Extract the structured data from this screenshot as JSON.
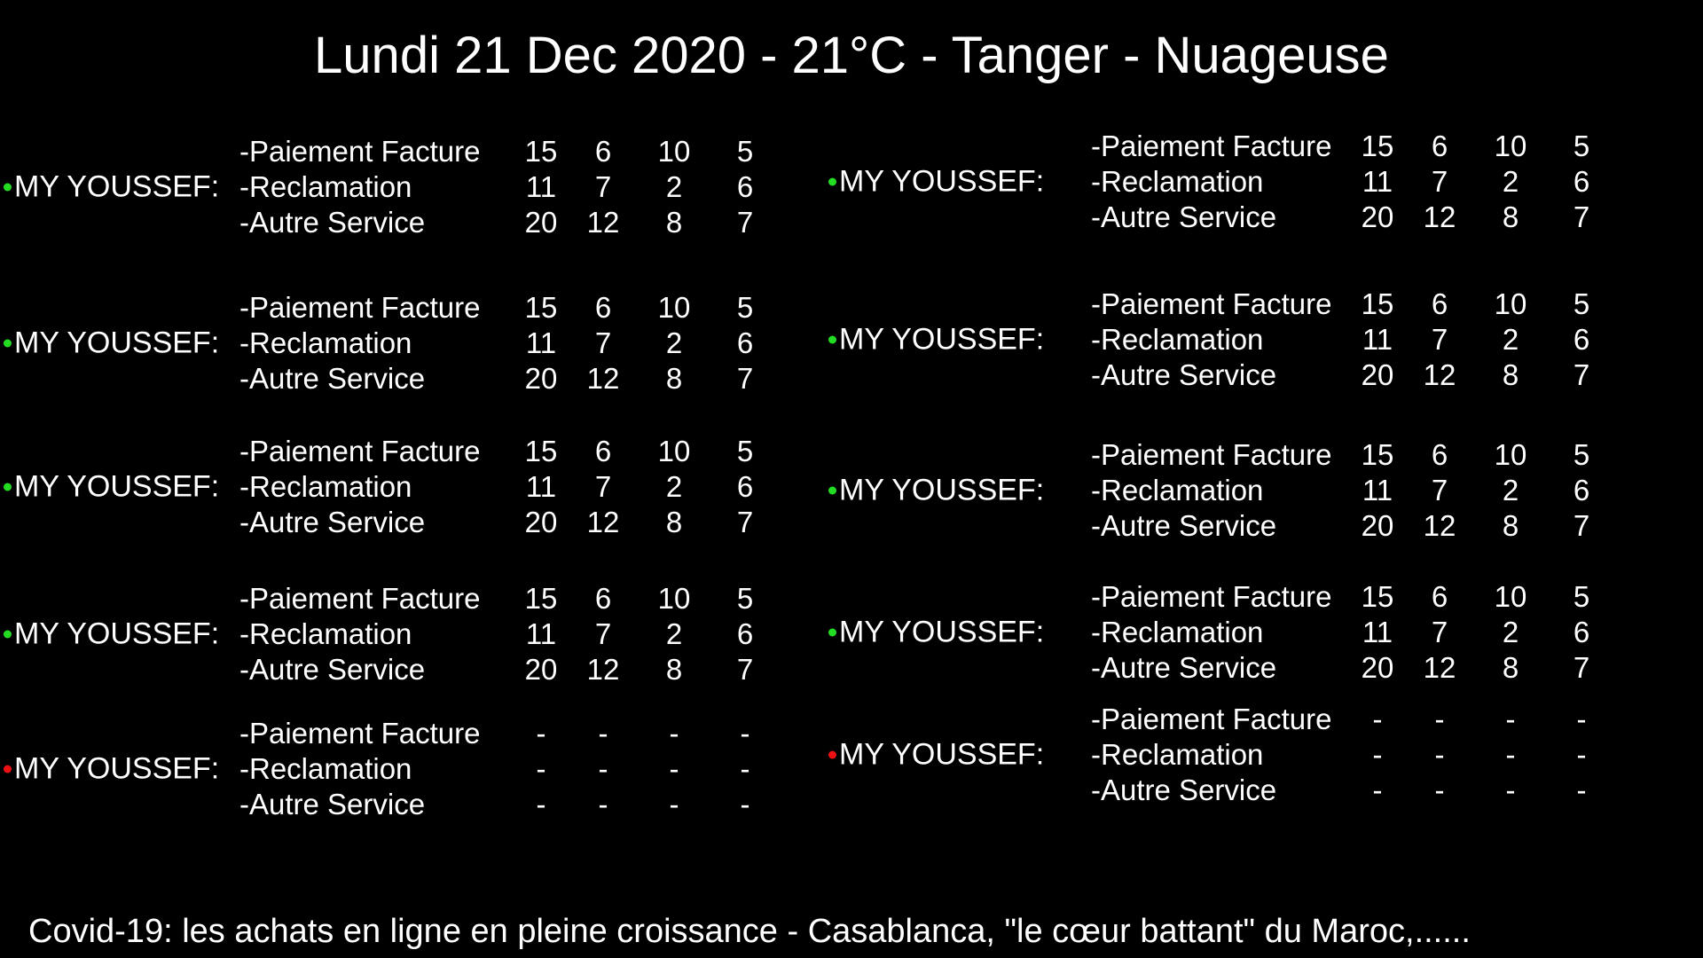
{
  "header": {
    "title": "Lundi 21 Dec 2020 - 21°C - Tanger - Nuageuse"
  },
  "status_colors": {
    "active": "#22dd22",
    "inactive": "#ee1111"
  },
  "services": [
    "-Paiement Facture",
    "-Reclamation",
    "-Autre Service"
  ],
  "left_agents": [
    {
      "name": "MY YOUSSEF:",
      "status": "active",
      "rows": [
        [
          "15",
          "6",
          "10",
          "5"
        ],
        [
          "11",
          "7",
          "2",
          "6"
        ],
        [
          "20",
          "12",
          "8",
          "7"
        ]
      ]
    },
    {
      "name": "MY YOUSSEF:",
      "status": "active",
      "rows": [
        [
          "15",
          "6",
          "10",
          "5"
        ],
        [
          "11",
          "7",
          "2",
          "6"
        ],
        [
          "20",
          "12",
          "8",
          "7"
        ]
      ]
    },
    {
      "name": "MY YOUSSEF:",
      "status": "active",
      "rows": [
        [
          "15",
          "6",
          "10",
          "5"
        ],
        [
          "11",
          "7",
          "2",
          "6"
        ],
        [
          "20",
          "12",
          "8",
          "7"
        ]
      ]
    },
    {
      "name": "MY YOUSSEF:",
      "status": "active",
      "rows": [
        [
          "15",
          "6",
          "10",
          "5"
        ],
        [
          "11",
          "7",
          "2",
          "6"
        ],
        [
          "20",
          "12",
          "8",
          "7"
        ]
      ]
    },
    {
      "name": "MY YOUSSEF:",
      "status": "inactive",
      "rows": [
        [
          "-",
          "-",
          "-",
          "-"
        ],
        [
          "-",
          "-",
          "-",
          "-"
        ],
        [
          "-",
          "-",
          "-",
          "-"
        ]
      ]
    }
  ],
  "right_agents": [
    {
      "name": "MY YOUSSEF:",
      "status": "active",
      "rows": [
        [
          "15",
          "6",
          "10",
          "5"
        ],
        [
          "11",
          "7",
          "2",
          "6"
        ],
        [
          "20",
          "12",
          "8",
          "7"
        ]
      ]
    },
    {
      "name": "MY YOUSSEF:",
      "status": "active",
      "rows": [
        [
          "15",
          "6",
          "10",
          "5"
        ],
        [
          "11",
          "7",
          "2",
          "6"
        ],
        [
          "20",
          "12",
          "8",
          "7"
        ]
      ]
    },
    {
      "name": "MY YOUSSEF:",
      "status": "active",
      "rows": [
        [
          "15",
          "6",
          "10",
          "5"
        ],
        [
          "11",
          "7",
          "2",
          "6"
        ],
        [
          "20",
          "12",
          "8",
          "7"
        ]
      ]
    },
    {
      "name": "MY YOUSSEF:",
      "status": "active",
      "rows": [
        [
          "15",
          "6",
          "10",
          "5"
        ],
        [
          "11",
          "7",
          "2",
          "6"
        ],
        [
          "20",
          "12",
          "8",
          "7"
        ]
      ]
    },
    {
      "name": "MY YOUSSEF:",
      "status": "inactive",
      "rows": [
        [
          "-",
          "-",
          "-",
          "-"
        ],
        [
          "-",
          "-",
          "-",
          "-"
        ],
        [
          "-",
          "-",
          "-",
          "-"
        ]
      ]
    }
  ],
  "ticker": {
    "text": "Covid-19: les achats en ligne en pleine croissance  -  Casablanca, \"le cœur battant\" du Maroc,......"
  }
}
